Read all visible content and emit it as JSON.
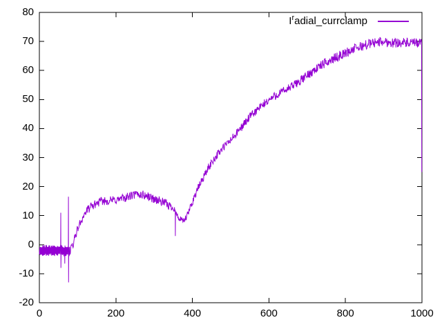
{
  "window": {
    "background": "#ffffff",
    "axis_color": "#000000",
    "text_color": "#000000"
  },
  "chart_data": {
    "type": "line",
    "title": "",
    "xlabel": "",
    "ylabel": "",
    "xlim": [
      0,
      1000
    ],
    "ylim": [
      -20,
      80
    ],
    "xticks": [
      0,
      200,
      400,
      600,
      800,
      1000
    ],
    "yticks": [
      -20,
      -10,
      0,
      10,
      20,
      30,
      40,
      50,
      60,
      70,
      80
    ],
    "grid": false,
    "legend": {
      "position": "top-right-inside",
      "base": "I",
      "superscript": "r",
      "rest": "adial_currclamp"
    },
    "series": [
      {
        "name": "I^radial_currclamp",
        "color": "#9400d3",
        "style": "noisy-line",
        "x_step": 1,
        "envelope_keypoints": [
          [
            0,
            -2
          ],
          [
            55,
            -2
          ],
          [
            80,
            -2.3
          ],
          [
            88,
            0
          ],
          [
            95,
            3.5
          ],
          [
            105,
            7
          ],
          [
            115,
            9.8
          ],
          [
            125,
            11.8
          ],
          [
            135,
            13
          ],
          [
            150,
            14.3
          ],
          [
            165,
            15
          ],
          [
            185,
            15.2
          ],
          [
            205,
            15.5
          ],
          [
            225,
            16.2
          ],
          [
            245,
            17
          ],
          [
            260,
            17.4
          ],
          [
            275,
            17
          ],
          [
            295,
            16
          ],
          [
            315,
            15
          ],
          [
            332,
            14
          ],
          [
            345,
            13
          ],
          [
            352,
            12.6
          ],
          [
            358,
            10.5
          ],
          [
            365,
            9
          ],
          [
            372,
            8.3
          ],
          [
            378,
            8.2
          ],
          [
            385,
            9.5
          ],
          [
            395,
            13
          ],
          [
            405,
            16.5
          ],
          [
            415,
            19.5
          ],
          [
            428,
            23
          ],
          [
            442,
            26.5
          ],
          [
            455,
            29.3
          ],
          [
            470,
            31.8
          ],
          [
            485,
            34
          ],
          [
            500,
            36
          ],
          [
            515,
            38.2
          ],
          [
            530,
            40.8
          ],
          [
            545,
            43.2
          ],
          [
            560,
            45.3
          ],
          [
            575,
            47
          ],
          [
            590,
            48.8
          ],
          [
            605,
            50.3
          ],
          [
            620,
            51.6
          ],
          [
            640,
            53
          ],
          [
            660,
            54.5
          ],
          [
            680,
            56.3
          ],
          [
            700,
            58.3
          ],
          [
            720,
            60.3
          ],
          [
            740,
            62
          ],
          [
            760,
            63.4
          ],
          [
            780,
            64.8
          ],
          [
            800,
            66
          ],
          [
            818,
            67.2
          ],
          [
            835,
            68
          ],
          [
            852,
            68.8
          ],
          [
            870,
            69.4
          ],
          [
            888,
            69.9
          ],
          [
            905,
            69.8
          ],
          [
            925,
            69.5
          ],
          [
            945,
            69.7
          ],
          [
            965,
            69.4
          ],
          [
            985,
            69.4
          ],
          [
            1000,
            69.6
          ]
        ],
        "noise_amplitude_keypoints": [
          [
            0,
            1.9
          ],
          [
            80,
            1.9
          ],
          [
            90,
            1.4
          ],
          [
            340,
            1.6
          ],
          [
            350,
            1.2
          ],
          [
            380,
            1.1
          ],
          [
            400,
            1.4
          ],
          [
            600,
            1.5
          ],
          [
            850,
            1.7
          ],
          [
            1000,
            1.7
          ]
        ],
        "spikes": [
          [
            56,
            11,
            -8
          ],
          [
            66,
            -1,
            -6.5
          ],
          [
            76,
            16.5,
            -13
          ],
          [
            355,
            12,
            3
          ]
        ],
        "end_drop": {
          "x": 999,
          "from": 70,
          "to": 25
        }
      }
    ]
  }
}
